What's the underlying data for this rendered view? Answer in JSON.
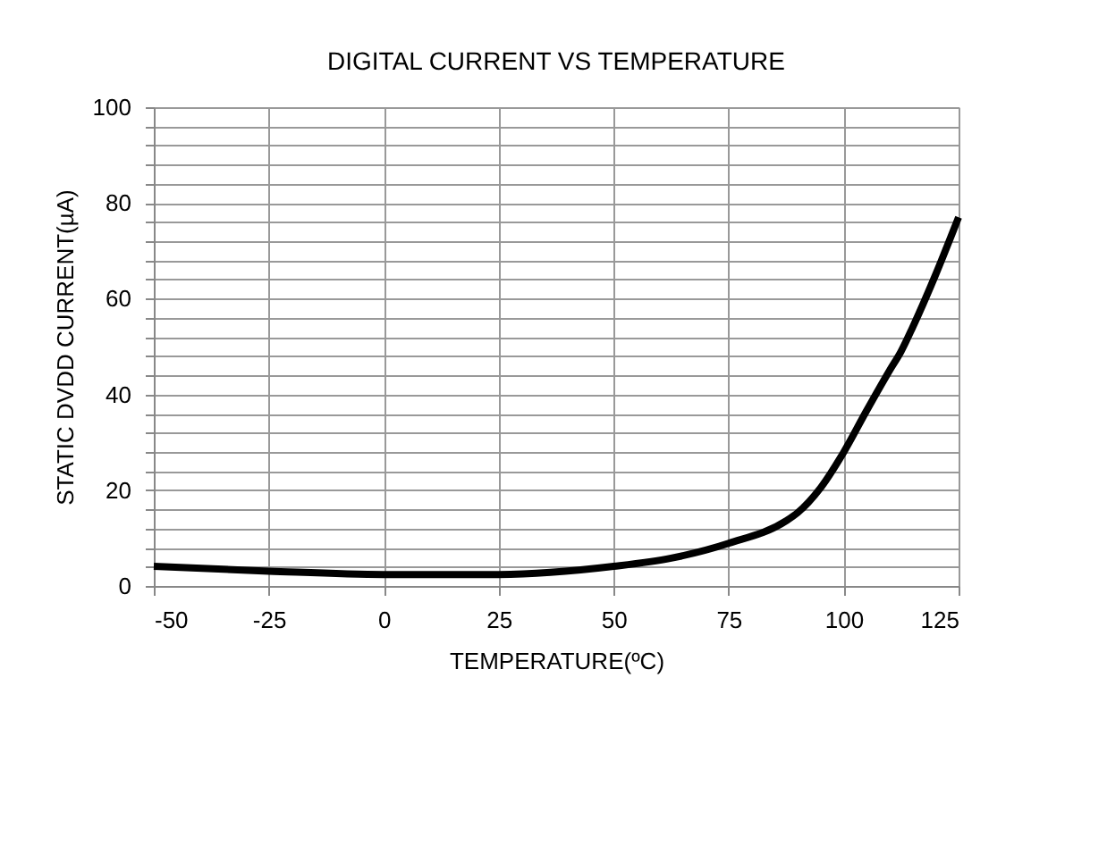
{
  "chart_data": {
    "type": "line",
    "title": "DIGITAL CURRENT  VS TEMPERATURE",
    "xlabel": "TEMPERATURE(ºC)",
    "ylabel": "STATIC DVDD CURRENT(µA)",
    "x": [
      -50,
      -25,
      0,
      25,
      50,
      62.5,
      75,
      87.5,
      90,
      95,
      100,
      105,
      110,
      112.5,
      115,
      120,
      125
    ],
    "series": [
      {
        "color": "#000000",
        "values": [
          4.1,
          3.1,
          2.4,
          2.4,
          4.1,
          5.8,
          8.9,
          13.6,
          15.3,
          20.5,
          27.9,
          36.6,
          45,
          49,
          54,
          65,
          77
        ]
      }
    ],
    "xlim": [
      -50,
      125
    ],
    "xticks": [
      -50,
      -25,
      0,
      25,
      50,
      75,
      100,
      125
    ],
    "ylim": [
      0,
      100
    ],
    "yticks": [
      0,
      {
        "value": 4,
        "label": null
      },
      {
        "value": 8,
        "label": null
      },
      {
        "value": 12,
        "label": null
      },
      {
        "value": 16,
        "label": null
      },
      20,
      {
        "value": 24,
        "label": null
      },
      {
        "value": 28,
        "label": null
      },
      {
        "value": 32,
        "label": null
      },
      {
        "value": 36,
        "label": null
      },
      40,
      {
        "value": 44,
        "label": null
      },
      {
        "value": 48,
        "label": null
      },
      {
        "value": 52,
        "label": null
      },
      {
        "value": 56,
        "label": null
      },
      60,
      {
        "value": 64,
        "label": null
      },
      {
        "value": 68,
        "label": null
      },
      {
        "value": 72,
        "label": null
      },
      {
        "value": 76,
        "label": null
      },
      80,
      {
        "value": 84,
        "label": null
      },
      {
        "value": 88,
        "label": null
      },
      {
        "value": 92,
        "label": null
      },
      {
        "value": 96,
        "label": null
      },
      100
    ],
    "grid": true,
    "marker": "none",
    "line_style": "solid"
  }
}
